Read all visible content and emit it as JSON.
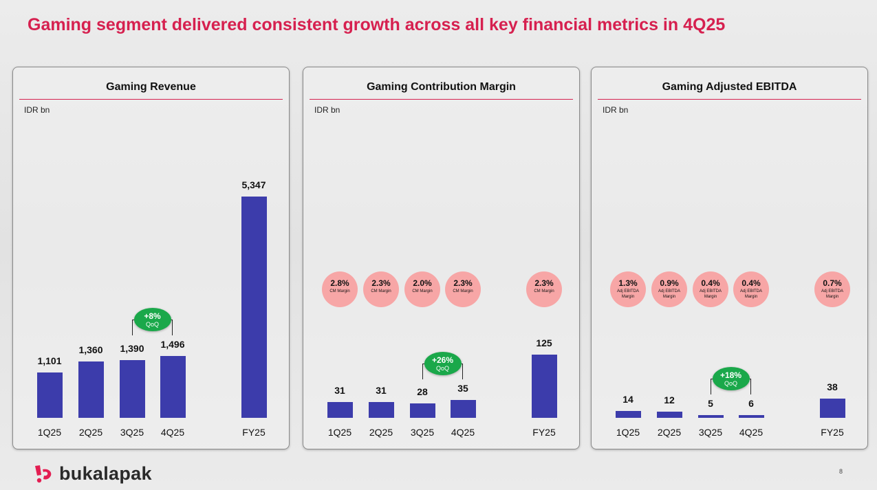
{
  "title": "Gaming segment delivered consistent growth across all key financial metrics in 4Q25",
  "brand": "bukalapak",
  "page_number": "8",
  "colors": {
    "accent": "#d6204f",
    "bar": "#3c3cab",
    "margin_circle": "#f7a6a6",
    "badge": "#1aa84a"
  },
  "chart_data": [
    {
      "type": "bar",
      "title": "Gaming Revenue",
      "unit": "IDR bn",
      "categories": [
        "1Q25",
        "2Q25",
        "3Q25",
        "4Q25",
        "FY25"
      ],
      "values": [
        1101,
        1360,
        1390,
        1496,
        5347
      ],
      "value_labels": [
        "1,101",
        "1,360",
        "1,390",
        "1,496",
        "5,347"
      ],
      "ylim": [
        0,
        5480
      ],
      "margins": [],
      "qoq": {
        "value": "+8%",
        "label": "QoQ",
        "between": [
          2,
          3
        ]
      }
    },
    {
      "type": "bar",
      "title": "Gaming Contribution Margin",
      "unit": "IDR bn",
      "categories": [
        "1Q25",
        "2Q25",
        "3Q25",
        "4Q25",
        "FY25"
      ],
      "values": [
        31,
        31,
        28,
        35,
        125
      ],
      "value_labels": [
        "31",
        "31",
        "28",
        "35",
        "125"
      ],
      "ylim": [
        0,
        448
      ],
      "margins": [
        {
          "value": "2.8%",
          "label": "CM Margin"
        },
        {
          "value": "2.3%",
          "label": "CM Margin"
        },
        {
          "value": "2.0%",
          "label": "CM Margin"
        },
        {
          "value": "2.3%",
          "label": "CM Margin"
        },
        {
          "value": "2.3%",
          "label": "CM Margin"
        }
      ],
      "qoq": {
        "value": "+26%",
        "label": "QoQ",
        "between": [
          2,
          3
        ]
      }
    },
    {
      "type": "bar",
      "title": "Gaming Adjusted EBITDA",
      "unit": "IDR bn",
      "categories": [
        "1Q25",
        "2Q25",
        "3Q25",
        "4Q25",
        "FY25"
      ],
      "values": [
        14,
        12,
        5,
        6,
        38
      ],
      "value_labels": [
        "14",
        "12",
        "5",
        "6",
        "38"
      ],
      "ylim": [
        0,
        448
      ],
      "margins": [
        {
          "value": "1.3%",
          "label": "Adj EBITDA Margin"
        },
        {
          "value": "0.9%",
          "label": "Adj EBITDA Margin"
        },
        {
          "value": "0.4%",
          "label": "Adj EBITDA Margin"
        },
        {
          "value": "0.4%",
          "label": "Adj EBITDA Margin"
        },
        {
          "value": "0.7%",
          "label": "Adj EBITDA Margin"
        }
      ],
      "qoq": {
        "value": "+18%",
        "label": "QoQ",
        "between": [
          2,
          3
        ]
      }
    }
  ]
}
